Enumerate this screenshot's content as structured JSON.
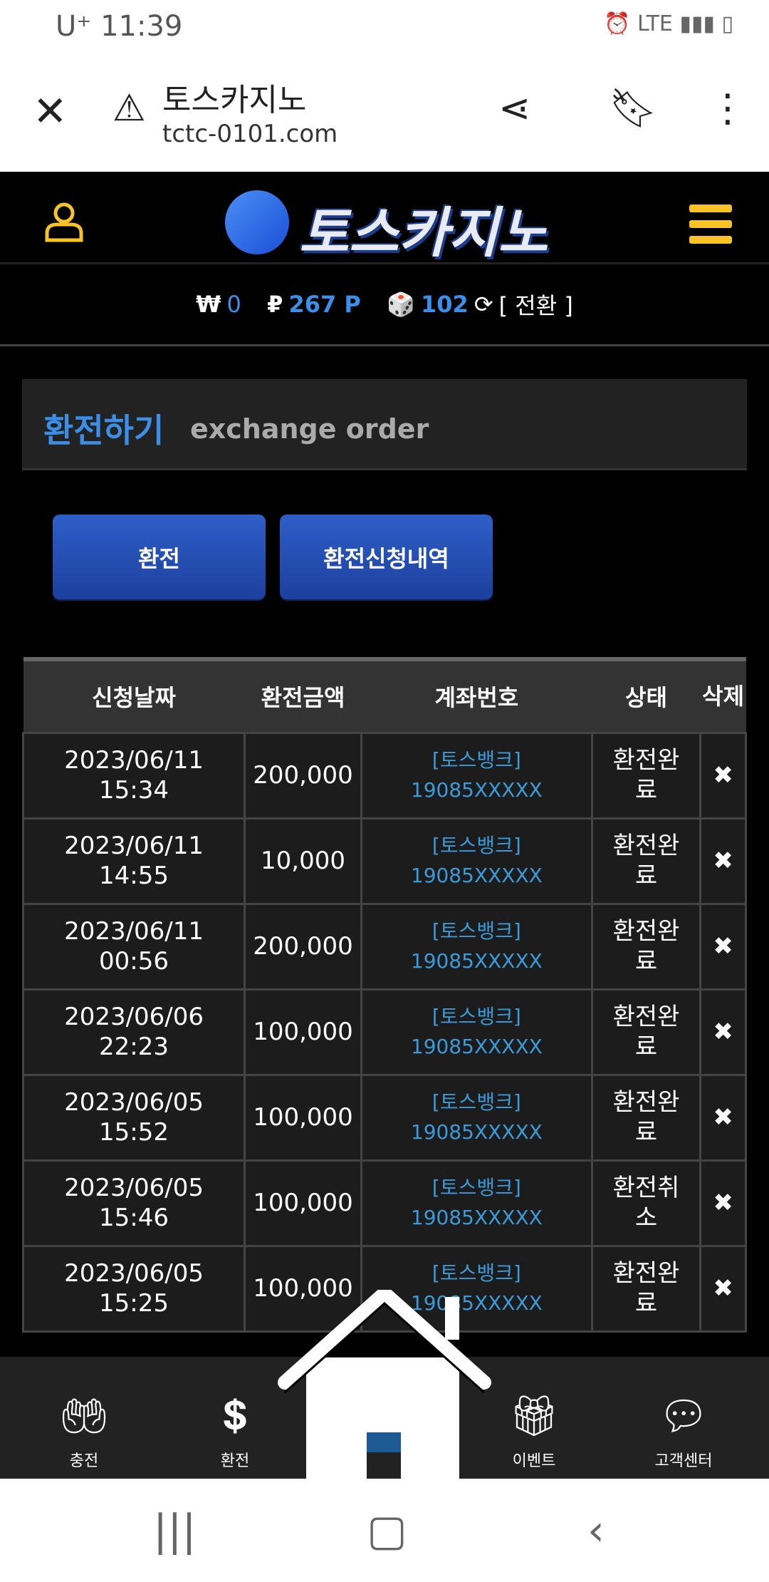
{
  "status_bar": {
    "carrier": "U⁺",
    "time": "11:39",
    "indicators": "⏰ LTE ▮▮▮ ▯"
  },
  "browser": {
    "title": "토스카지노",
    "url": "tctc-0101.com"
  },
  "header": {
    "logo_text": "토스카지노"
  },
  "balance": {
    "won_symbol": "₩",
    "won": "0",
    "point_symbol": "₽",
    "points": "267 P",
    "chip_symbol": "🎲",
    "chips": "102",
    "convert": "[ 전환 ]"
  },
  "page": {
    "title_ko": "환전하기",
    "title_en": "exchange order"
  },
  "buttons": {
    "exchange": "환전",
    "history": "환전신청내역"
  },
  "table": {
    "headers": [
      "신청날짜",
      "환전금액",
      "계좌번호",
      "상태",
      "삭제"
    ],
    "rows": [
      {
        "date": "2023/06/11",
        "time": "15:34",
        "amount": "200,000",
        "bank": "[토스뱅크]",
        "account": "19085XXXXX",
        "status": "환전완료"
      },
      {
        "date": "2023/06/11",
        "time": "14:55",
        "amount": "10,000",
        "bank": "[토스뱅크]",
        "account": "19085XXXXX",
        "status": "환전완료"
      },
      {
        "date": "2023/06/11",
        "time": "00:56",
        "amount": "200,000",
        "bank": "[토스뱅크]",
        "account": "19085XXXXX",
        "status": "환전완료"
      },
      {
        "date": "2023/06/06",
        "time": "22:23",
        "amount": "100,000",
        "bank": "[토스뱅크]",
        "account": "19085XXXXX",
        "status": "환전완료"
      },
      {
        "date": "2023/06/05",
        "time": "15:52",
        "amount": "100,000",
        "bank": "[토스뱅크]",
        "account": "19085XXXXX",
        "status": "환전완료"
      },
      {
        "date": "2023/06/05",
        "time": "15:46",
        "amount": "100,000",
        "bank": "[토스뱅크]",
        "account": "19085XXXXX",
        "status": "환전취소"
      },
      {
        "date": "2023/06/05",
        "time": "15:25",
        "amount": "100,000",
        "bank": "[토스뱅크]",
        "account": "19085XXXXX",
        "status": "환전완료"
      }
    ],
    "delete_symbol": "✖"
  },
  "bottom_nav": [
    {
      "label": "충전",
      "icon": "deposit-icon"
    },
    {
      "label": "환전",
      "icon": "withdraw-icon"
    },
    {
      "label": "",
      "icon": "home-icon"
    },
    {
      "label": "이벤트",
      "icon": "gift-icon"
    },
    {
      "label": "고객센터",
      "icon": "support-icon"
    }
  ],
  "colors": {
    "accent": "#3b8fe8",
    "menu": "#f7c325",
    "button": "#2450b8"
  }
}
